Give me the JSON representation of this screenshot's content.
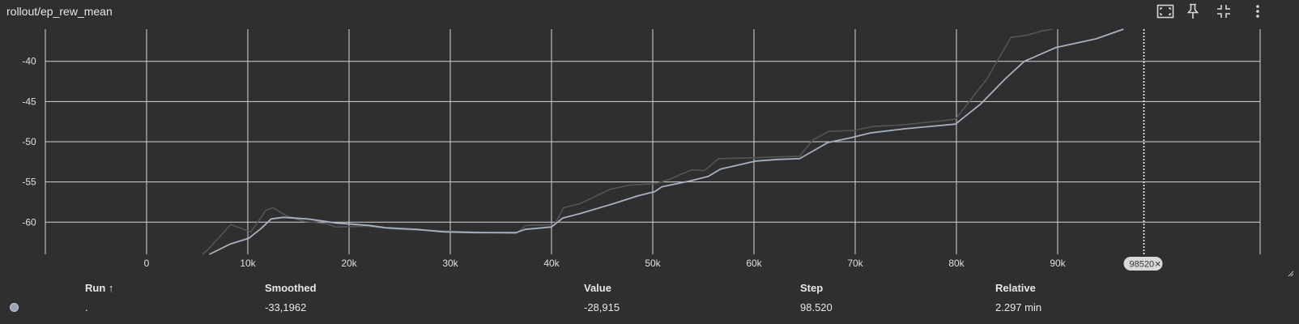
{
  "title": "rollout/ep_rew_mean",
  "toolbar": {
    "fit_icon": "fit-domain-icon",
    "pin_icon": "pin-icon",
    "collapse_icon": "collapse-icon",
    "more_icon": "more-vert-icon"
  },
  "colors": {
    "background": "#2f2f2f",
    "grid": "#d6d6d6",
    "raw": "#555555",
    "smoothed": "#a8b1c0"
  },
  "chart_data": {
    "type": "line",
    "title": "rollout/ep_rew_mean",
    "xlabel": "",
    "ylabel": "",
    "xlim": [
      -10000,
      110000
    ],
    "ylim": [
      -64,
      -36
    ],
    "x_ticks": [
      0,
      10000,
      20000,
      30000,
      40000,
      50000,
      60000,
      70000,
      80000,
      90000
    ],
    "x_tick_labels": [
      "0",
      "10k",
      "20k",
      "30k",
      "40k",
      "50k",
      "60k",
      "70k",
      "80k",
      "90k"
    ],
    "y_ticks": [
      -60,
      -55,
      -50,
      -45,
      -40
    ],
    "y_tick_labels": [
      "-60",
      "-55",
      "-50",
      "-45",
      "-40"
    ],
    "grid": true,
    "hover_step_label": "98520",
    "hover_step": 98520,
    "series": [
      {
        "role": "raw",
        "x": [
          5500,
          6000,
          8300,
          10300,
          11800,
          12500,
          13800,
          15600,
          17800,
          18700,
          21800,
          23400,
          24900,
          27000,
          32000,
          36500,
          37500,
          40300,
          41200,
          42800,
          45800,
          47700,
          50300,
          51600,
          53800,
          55100,
          56500,
          59700,
          61700,
          64500,
          65800,
          67400,
          69800,
          71800,
          74800,
          79900,
          83000,
          85400,
          86800,
          88500,
          89500
        ],
        "y": [
          -64,
          -63.5,
          -60.3,
          -61.2,
          -58.5,
          -58.2,
          -59.2,
          -59.9,
          -60.2,
          -60.6,
          -60.5,
          -60.7,
          -60.9,
          -61.0,
          -61.2,
          -61.4,
          -60.4,
          -60.3,
          -58.2,
          -57.7,
          -55.9,
          -55.4,
          -55.2,
          -54.7,
          -53.5,
          -53.6,
          -52.1,
          -52.0,
          -51.9,
          -51.8,
          -49.8,
          -48.7,
          -48.6,
          -48.1,
          -47.9,
          -47.2,
          -42.2,
          -37.0,
          -36.8,
          -36.2,
          -36.0
        ]
      },
      {
        "role": "smoothed",
        "x": [
          6200,
          8300,
          10100,
          11300,
          12300,
          13500,
          15900,
          18700,
          22000,
          23600,
          26700,
          29300,
          32500,
          36500,
          37400,
          40000,
          41100,
          42900,
          46100,
          48600,
          50200,
          50900,
          53600,
          55500,
          56700,
          60200,
          62400,
          64500,
          67300,
          69600,
          71500,
          74800,
          79900,
          82400,
          84800,
          86700,
          89800,
          93800,
          96500
        ],
        "y": [
          -64,
          -62.7,
          -62.0,
          -60.8,
          -59.6,
          -59.4,
          -59.6,
          -60.1,
          -60.4,
          -60.7,
          -60.9,
          -61.2,
          -61.3,
          -61.3,
          -60.9,
          -60.6,
          -59.5,
          -58.9,
          -57.7,
          -56.7,
          -56.2,
          -55.6,
          -54.9,
          -54.3,
          -53.4,
          -52.4,
          -52.2,
          -52.1,
          -50.1,
          -49.5,
          -48.9,
          -48.4,
          -47.8,
          -45.3,
          -42.2,
          -40.0,
          -38.3,
          -37.2,
          -36.0
        ]
      }
    ]
  },
  "table": {
    "headers": {
      "run": "Run ↑",
      "smoothed": "Smoothed",
      "value": "Value",
      "step": "Step",
      "relative": "Relative"
    },
    "row": {
      "run": ".",
      "smoothed": "-33,1962",
      "value": "-28,915",
      "step": "98.520",
      "relative": "2.297 min"
    }
  }
}
